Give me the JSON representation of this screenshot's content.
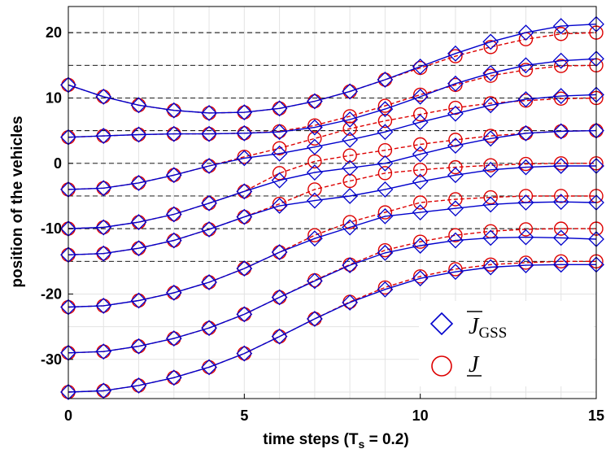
{
  "chart_data": {
    "type": "line",
    "xlabel": "time steps (T",
    "xlabel_sub": "s",
    "xlabel_tail": " = 0.2)",
    "ylabel": "position of the vehicles",
    "xlim": [
      0,
      15
    ],
    "ylim": [
      -36,
      24
    ],
    "xticks": [
      0,
      5,
      10,
      15
    ],
    "yticks": [
      20,
      10,
      0,
      -10,
      -20,
      -30
    ],
    "grid": true,
    "reference_lines": [
      20,
      15,
      10,
      5,
      0,
      -5,
      -10,
      -15
    ],
    "legend": {
      "placement": "bottom-right",
      "entries": [
        {
          "label": "J",
          "sub": "GSS",
          "bar": "over",
          "marker": "diamond",
          "color": "#0000CC"
        },
        {
          "label": "J",
          "sub": "",
          "bar": "under",
          "marker": "circle",
          "color": "#DD0000"
        }
      ]
    },
    "x": [
      0,
      1,
      2,
      3,
      4,
      5,
      6,
      7,
      8,
      9,
      10,
      11,
      12,
      13,
      14,
      15
    ],
    "series": [
      {
        "marker": "diamond",
        "color": "#0000CC",
        "values": [
          [
            12.0,
            10.2,
            8.9,
            8.1,
            7.7,
            7.8,
            8.4,
            9.5,
            11.0,
            12.8,
            14.8,
            16.8,
            18.6,
            20.0,
            21.0,
            21.3
          ],
          [
            4.0,
            4.2,
            4.4,
            4.5,
            4.5,
            4.6,
            4.8,
            5.5,
            6.7,
            8.3,
            10.2,
            12.2,
            13.8,
            15.0,
            15.7,
            16.0
          ],
          [
            -4.0,
            -3.8,
            -3.0,
            -1.8,
            -0.4,
            0.8,
            1.5,
            2.5,
            3.6,
            4.8,
            6.3,
            7.6,
            8.9,
            9.8,
            10.3,
            10.5
          ],
          [
            -10.0,
            -9.8,
            -9.0,
            -7.8,
            -6.1,
            -4.3,
            -2.6,
            -1.4,
            -0.7,
            0.0,
            1.4,
            2.7,
            3.8,
            4.6,
            4.9,
            5.0
          ],
          [
            -14.0,
            -13.8,
            -13.0,
            -11.8,
            -10.1,
            -8.2,
            -6.5,
            -5.7,
            -5.0,
            -4.0,
            -2.8,
            -1.8,
            -1.0,
            -0.6,
            -0.4,
            -0.4
          ],
          [
            -22.0,
            -21.8,
            -21.0,
            -19.8,
            -18.2,
            -16.1,
            -13.6,
            -11.5,
            -9.8,
            -8.1,
            -7.5,
            -6.9,
            -6.3,
            -6.0,
            -5.9,
            -6.0
          ],
          [
            -29.0,
            -28.8,
            -28.0,
            -26.8,
            -25.2,
            -23.1,
            -20.5,
            -18.0,
            -15.6,
            -13.7,
            -12.6,
            -11.8,
            -11.4,
            -11.3,
            -11.4,
            -11.6
          ],
          [
            -35.0,
            -34.8,
            -34.0,
            -32.8,
            -31.2,
            -29.1,
            -26.5,
            -23.8,
            -21.3,
            -19.3,
            -17.6,
            -16.6,
            -15.9,
            -15.6,
            -15.5,
            -15.5
          ]
        ]
      },
      {
        "marker": "circle",
        "color": "#DD0000",
        "values": [
          [
            12.0,
            10.2,
            8.9,
            8.1,
            7.7,
            7.8,
            8.4,
            9.5,
            11.0,
            12.8,
            14.6,
            16.4,
            17.8,
            19.0,
            19.8,
            20.0
          ],
          [
            4.0,
            4.2,
            4.4,
            4.5,
            4.5,
            4.6,
            4.9,
            5.8,
            7.2,
            8.8,
            10.5,
            12.0,
            13.4,
            14.3,
            14.9,
            15.0
          ],
          [
            -4.0,
            -3.8,
            -3.0,
            -1.8,
            -0.4,
            1.0,
            2.3,
            3.8,
            5.3,
            6.5,
            7.5,
            8.5,
            9.2,
            9.6,
            9.9,
            10.0
          ],
          [
            -10.0,
            -9.8,
            -9.0,
            -7.8,
            -6.1,
            -4.3,
            -1.5,
            0.3,
            1.2,
            2.0,
            2.9,
            3.6,
            4.2,
            4.6,
            4.9,
            5.0
          ],
          [
            -14.0,
            -13.8,
            -13.0,
            -11.8,
            -10.1,
            -8.2,
            -6.2,
            -4.0,
            -2.7,
            -1.5,
            -1.0,
            -0.6,
            -0.3,
            -0.1,
            0.0,
            0.0
          ],
          [
            -22.0,
            -21.8,
            -21.0,
            -19.8,
            -18.2,
            -16.1,
            -13.6,
            -11.0,
            -9.0,
            -7.5,
            -6.0,
            -5.5,
            -5.2,
            -5.0,
            -5.0,
            -5.0
          ],
          [
            -29.0,
            -28.8,
            -28.0,
            -26.8,
            -25.2,
            -23.1,
            -20.5,
            -17.9,
            -15.5,
            -13.3,
            -12.0,
            -11.0,
            -10.4,
            -10.1,
            -10.0,
            -10.0
          ],
          [
            -35.0,
            -34.8,
            -34.0,
            -32.8,
            -31.2,
            -29.1,
            -26.5,
            -23.8,
            -21.2,
            -19.0,
            -17.3,
            -16.2,
            -15.5,
            -15.2,
            -15.0,
            -15.0
          ]
        ]
      }
    ]
  }
}
